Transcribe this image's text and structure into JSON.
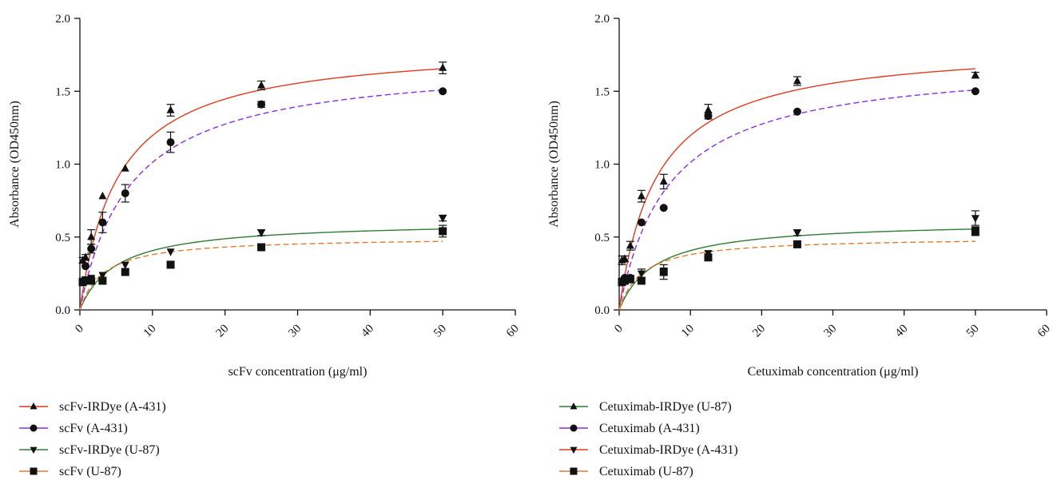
{
  "chart_data": [
    {
      "type": "scatter",
      "title": "",
      "xlabel": "scFv concentration (μg/ml)",
      "ylabel": "Absorbance (OD450nm)",
      "xlim": [
        0,
        60
      ],
      "ylim": [
        0,
        2.0
      ],
      "xticks": [
        "0",
        "10",
        "20",
        "30",
        "40",
        "50",
        "60"
      ],
      "yticks": [
        "0.0",
        "0.5",
        "1.0",
        "1.5",
        "2.0"
      ],
      "grid": false,
      "legend_position": "bottom-left",
      "series": [
        {
          "name": "scFv-IRDye (A-431)",
          "marker": "triangle-up",
          "fit_color": "#e03a20",
          "fit_style": "solid",
          "fit_bmax": 1.83,
          "fit_kd": 5.3,
          "x": [
            0.39,
            0.78,
            1.56,
            3.125,
            6.25,
            12.5,
            25,
            50
          ],
          "y": [
            0.34,
            0.36,
            0.5,
            0.78,
            0.97,
            1.37,
            1.54,
            1.66
          ],
          "err": [
            0.02,
            0.02,
            0.05,
            0.01,
            0.01,
            0.04,
            0.03,
            0.04
          ]
        },
        {
          "name": "scFv (A-431)",
          "marker": "circle",
          "fit_color": "#8a2be2",
          "fit_style": "dashed",
          "fit_bmax": 1.72,
          "fit_kd": 7.0,
          "x": [
            0.39,
            0.78,
            1.56,
            3.125,
            6.25,
            12.5,
            25,
            50
          ],
          "y": [
            0.19,
            0.3,
            0.42,
            0.6,
            0.8,
            1.15,
            1.41,
            1.5
          ],
          "err": [
            0.01,
            0.01,
            0.03,
            0.07,
            0.06,
            0.07,
            0.02,
            0.01
          ]
        },
        {
          "name": "scFv-IRDye (U-87)",
          "marker": "triangle-down",
          "fit_color": "#2e7d32",
          "fit_style": "solid",
          "fit_bmax": 0.61,
          "fit_kd": 5.0,
          "x": [
            0.39,
            0.78,
            1.56,
            3.125,
            6.25,
            12.5,
            25,
            50
          ],
          "y": [
            0.2,
            0.21,
            0.22,
            0.24,
            0.31,
            0.4,
            0.53,
            0.63
          ],
          "err": [
            0.01,
            0.01,
            0.01,
            0.01,
            0.01,
            0.01,
            0.02,
            0.02
          ]
        },
        {
          "name": "scFv (U-87)",
          "marker": "square",
          "fit_color": "#e07a2e",
          "fit_style": "dashed",
          "fit_bmax": 0.5,
          "fit_kd": 3.2,
          "x": [
            0.39,
            0.78,
            1.56,
            3.125,
            6.25,
            12.5,
            25,
            50
          ],
          "y": [
            0.19,
            0.2,
            0.2,
            0.2,
            0.26,
            0.31,
            0.43,
            0.54
          ],
          "err": [
            0.01,
            0.01,
            0.01,
            0.01,
            0.01,
            0.01,
            0.01,
            0.04
          ]
        }
      ]
    },
    {
      "type": "scatter",
      "title": "",
      "xlabel": "Cetuximab concentration (μg/ml)",
      "ylabel": "Absorbance (OD450nm)",
      "xlim": [
        0,
        60
      ],
      "ylim": [
        0,
        2.0
      ],
      "xticks": [
        "0",
        "10",
        "20",
        "30",
        "40",
        "50",
        "60"
      ],
      "yticks": [
        "0.0",
        "0.5",
        "1.0",
        "1.5",
        "2.0"
      ],
      "grid": false,
      "legend_position": "bottom-left",
      "series": [
        {
          "name": "Cetuximab-IRDye (U-87)",
          "marker": "triangle-up",
          "fit_color": "#2e7d32",
          "fit_style": "solid",
          "fit_bmax": 0.61,
          "fit_kd": 5.0,
          "x": [
            0.39,
            0.78,
            1.56,
            3.125,
            6.25,
            12.5,
            25,
            50
          ],
          "y": [
            0.34,
            0.35,
            0.44,
            0.78,
            0.88,
            1.37,
            1.57,
            1.61
          ],
          "err": [
            0.03,
            0.02,
            0.03,
            0.04,
            0.05,
            0.04,
            0.03,
            0.02
          ]
        },
        {
          "name": "Cetuximab (A-431)",
          "marker": "circle",
          "fit_color": "#8a2be2",
          "fit_style": "dashed",
          "fit_bmax": 1.72,
          "fit_kd": 7.0,
          "x": [
            0.39,
            0.78,
            1.56,
            3.125,
            6.25,
            12.5,
            25,
            50
          ],
          "y": [
            0.19,
            0.22,
            0.22,
            0.6,
            0.7,
            1.33,
            1.36,
            1.5
          ],
          "err": [
            0.01,
            0.01,
            0.01,
            0.01,
            0.01,
            0.02,
            0.01,
            0.01
          ]
        },
        {
          "name": "Cetuximab-IRDye (A-431)",
          "marker": "triangle-down",
          "fit_color": "#e03a20",
          "fit_style": "solid",
          "fit_bmax": 1.83,
          "fit_kd": 5.3,
          "x": [
            0.39,
            0.78,
            1.56,
            3.125,
            6.25,
            12.5,
            25,
            50
          ],
          "y": [
            0.2,
            0.21,
            0.22,
            0.25,
            0.27,
            0.39,
            0.53,
            0.63
          ],
          "err": [
            0.01,
            0.01,
            0.01,
            0.03,
            0.01,
            0.01,
            0.02,
            0.05
          ]
        },
        {
          "name": "Cetuximab (U-87)",
          "marker": "square",
          "fit_color": "#e07a2e",
          "fit_style": "dashed",
          "fit_bmax": 0.5,
          "fit_kd": 3.2,
          "x": [
            0.39,
            0.78,
            1.56,
            3.125,
            6.25,
            12.5,
            25,
            50
          ],
          "y": [
            0.19,
            0.2,
            0.21,
            0.2,
            0.26,
            0.36,
            0.45,
            0.54
          ],
          "err": [
            0.01,
            0.01,
            0.01,
            0.01,
            0.05,
            0.01,
            0.01,
            0.03
          ]
        }
      ]
    }
  ]
}
